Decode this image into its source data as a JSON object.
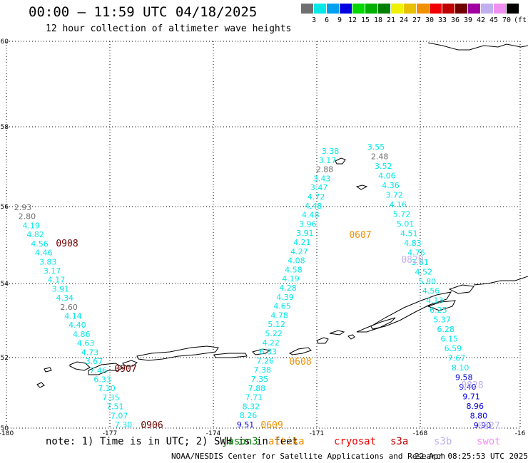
{
  "header": {
    "title": "00:00 – 11:59 UTC 04/18/2025",
    "subtitle": "12 hour collection of altimeter wave heights"
  },
  "colorbar": {
    "unit": "(ft)",
    "colors": [
      "#707070",
      "#00e8e8",
      "#00a0f0",
      "#0000e0",
      "#00d800",
      "#00b000",
      "#008000",
      "#f0f000",
      "#e8c000",
      "#f09000",
      "#f00000",
      "#c00000",
      "#700000",
      "#a000a0",
      "#c0b0f0",
      "#f090f0",
      "#000000"
    ],
    "labels": [
      "3",
      "6",
      "9",
      "12",
      "15",
      "18",
      "21",
      "24",
      "27",
      "30",
      "33",
      "36",
      "39",
      "42",
      "45",
      "70"
    ]
  },
  "axes": {
    "lon_ticks": [
      "-180",
      "-177",
      "-174",
      "-171",
      "-168",
      "-16"
    ],
    "lat_ticks": [
      "60",
      "58",
      "56",
      "54",
      "52",
      "50"
    ]
  },
  "map": {
    "track_labels": [
      {
        "text": "0908",
        "color": "#700000"
      },
      {
        "text": "0907",
        "color": "#700000"
      },
      {
        "text": "0906",
        "color": "#700000"
      },
      {
        "text": "0607",
        "color": "#f09000"
      },
      {
        "text": "0608",
        "color": "#f09000"
      },
      {
        "text": "0609",
        "color": "#f09000"
      },
      {
        "text": "0829",
        "color": "#c0b0f0"
      },
      {
        "text": "0828",
        "color": "#c0b0f0"
      },
      {
        "text": "0827",
        "color": "#c0b0f0"
      }
    ],
    "track_a": [
      "2.93",
      "2.80",
      "4.19",
      "4.82",
      "4.56",
      "4.46",
      "3.83",
      "3.17",
      "4.17",
      "3.91",
      "4.34",
      "2.60",
      "4.14",
      "4.40",
      "4.86",
      "4.63",
      "4.73",
      "3.67",
      "7.46",
      "6.33",
      "7.10",
      "7.35",
      "7.51",
      "7.07",
      "7.30"
    ],
    "track_a_colors": [
      "#707070",
      "#707070",
      "c",
      "c",
      "c",
      "c",
      "c",
      "c",
      "c",
      "c",
      "c",
      "#707070",
      "c",
      "c",
      "c",
      "c",
      "c",
      "c",
      "c",
      "c",
      "c",
      "c",
      "c",
      "c",
      "c"
    ],
    "track_b": [
      "9.51",
      "8.26",
      "8.32",
      "7.71",
      "7.88",
      "7.35",
      "7.38",
      "7.26",
      "6.33",
      "4.22",
      "5.22",
      "5.12",
      "4.78",
      "4.65",
      "4.39",
      "4.28",
      "4.19",
      "4.58",
      "4.08",
      "4.27",
      "4.21",
      "3.91",
      "3.96",
      "4.48",
      "4.48",
      "4.72",
      "3.47",
      "3.43",
      "2.88",
      "3.17",
      "3.38"
    ],
    "track_b_colors": [
      "#0000e0",
      "c",
      "c",
      "c",
      "c",
      "c",
      "c",
      "c",
      "c",
      "c",
      "c",
      "c",
      "c",
      "c",
      "c",
      "c",
      "c",
      "c",
      "c",
      "c",
      "c",
      "c",
      "c",
      "c",
      "c",
      "c",
      "c",
      "c",
      "#707070",
      "c",
      "c"
    ],
    "track_c": [
      "3.55",
      "2.48",
      "3.52",
      "4.06",
      "4.36",
      "3.72",
      "4.16",
      "5.72",
      "5.01",
      "4.51",
      "4.83",
      "4.76",
      "3.81",
      "4.52",
      "5.80",
      "4.56",
      "4.13",
      "6.25",
      "5.37",
      "6.28",
      "6.15",
      "6.59",
      "7.67",
      "8.10",
      "9.58",
      "9.40",
      "9.71",
      "8.96",
      "8.80",
      "9.90"
    ],
    "track_c_colors": [
      "c",
      "#707070",
      "c",
      "c",
      "c",
      "c",
      "c",
      "c",
      "c",
      "c",
      "c",
      "c",
      "c",
      "c",
      "c",
      "c",
      "c",
      "c",
      "c",
      "c",
      "c",
      "c",
      "c",
      "c",
      "#0000e0",
      "#0000e0",
      "#0000e0",
      "#0000e0",
      "#0000e0",
      "#0000e0"
    ]
  },
  "footer": {
    "note": "note: 1) Time is in UTC; 2) SWH is in feet",
    "satellites": [
      {
        "name": "jason3",
        "color": "#008000"
      },
      {
        "name": "altika",
        "color": "#f09000"
      },
      {
        "name": "cryosat",
        "color": "#f00000"
      },
      {
        "name": "s3a",
        "color": "#c00000"
      },
      {
        "name": "s3b",
        "color": "#c0b0f0"
      },
      {
        "name": "swot",
        "color": "#f090f0"
      }
    ],
    "credit": "NOAA/NESDIS Center for Satellite Applications and Research",
    "timestamp": "22 Apr 08:25:53 UTC 2025"
  }
}
